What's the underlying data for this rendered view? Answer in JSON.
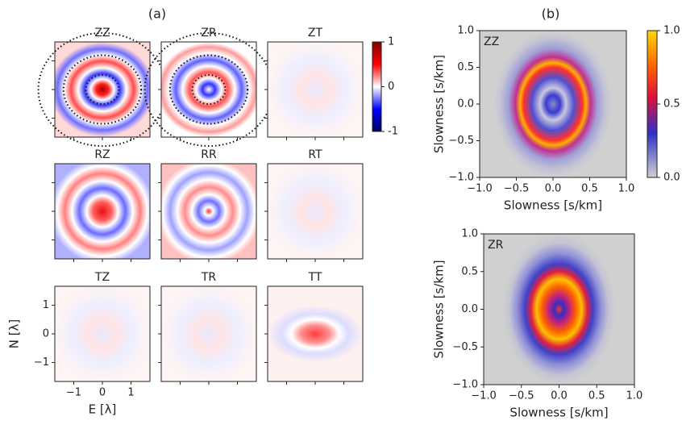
{
  "chart_data": [
    {
      "type": "heatmap",
      "label": "(a)",
      "subplots": [
        {
          "title": "ZZ"
        },
        {
          "title": "ZR"
        },
        {
          "title": "ZT"
        },
        {
          "title": "RZ"
        },
        {
          "title": "RR"
        },
        {
          "title": "RT"
        },
        {
          "title": "TZ"
        },
        {
          "title": "TR"
        },
        {
          "title": "TT"
        }
      ],
      "xlabel": "E [λ]",
      "ylabel": "N [λ]",
      "xlim": [
        -1.66,
        1.66
      ],
      "xticks": [
        {
          "value": -1,
          "label": "−1"
        },
        0,
        1
      ],
      "ylim": [
        -1.66,
        1.66
      ],
      "yticks": [
        {
          "value": -1,
          "label": "−1"
        },
        0,
        1
      ],
      "colorbar": {
        "ylim": [
          -1,
          1
        ],
        "yticks": [
          {
            "value": -1,
            "label": "-1"
          },
          0,
          1
        ]
      }
    },
    {
      "type": "heatmap",
      "label": "(b)",
      "subplots": [
        {
          "title": "ZZ",
          "xlabel": "Slowness [s/km]",
          "ylabel": "Slowness [s/km]"
        },
        {
          "title": "ZR",
          "xlabel": "Slowness [s/km]",
          "ylabel": "Slowness [s/km]"
        }
      ],
      "xlim": [
        -1,
        1
      ],
      "xticks": [
        {
          "value": -1,
          "label": "−1.0"
        },
        {
          "value": -0.5,
          "label": "−0.5"
        },
        {
          "value": 0,
          "label": "0.0"
        },
        0.5,
        {
          "value": 1,
          "label": "1.0"
        }
      ],
      "ylim": [
        -1,
        1
      ],
      "yticks": [
        {
          "value": -1,
          "label": "−1.0"
        },
        {
          "value": -0.5,
          "label": "−0.5"
        },
        {
          "value": 0,
          "label": "0.0"
        },
        0.5,
        {
          "value": 1,
          "label": "1.0"
        }
      ],
      "colorbar": {
        "ylim": [
          0,
          1
        ],
        "yticks": [
          {
            "value": 0,
            "label": "0.0"
          },
          0.5,
          {
            "value": 1,
            "label": "1.0"
          }
        ]
      }
    }
  ]
}
